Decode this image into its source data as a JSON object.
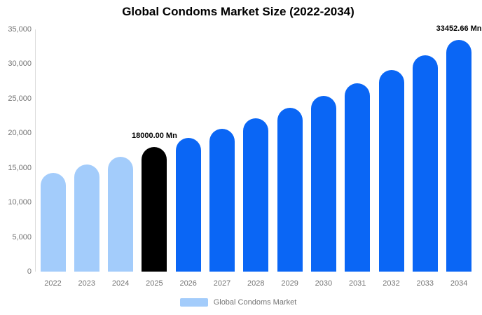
{
  "title": "Global Condoms Market Size (2022-2034)",
  "legend": {
    "label": "Global Condoms Market",
    "swatch_color": "#a3ccfb"
  },
  "colors": {
    "past": "#a3ccfb",
    "current": "#000000",
    "forecast": "#0a66f5",
    "axis_line": "#dcdcdc",
    "tick_text": "#757575"
  },
  "chart_data": {
    "type": "bar",
    "title": "Global Condoms Market Size (2022-2034)",
    "xlabel": "",
    "ylabel": "",
    "unit": "Mn",
    "categories": [
      "2022",
      "2023",
      "2024",
      "2025",
      "2026",
      "2027",
      "2028",
      "2029",
      "2030",
      "2031",
      "2032",
      "2033",
      "2034"
    ],
    "series": [
      {
        "name": "Global Condoms Market",
        "values": [
          14300,
          15500,
          16600,
          18000,
          19283,
          20657,
          22130,
          23707,
          25397,
          27208,
          29147,
          31225,
          33452.66
        ]
      }
    ],
    "point_colors": [
      "#a3ccfb",
      "#a3ccfb",
      "#a3ccfb",
      "#000000",
      "#0a66f5",
      "#0a66f5",
      "#0a66f5",
      "#0a66f5",
      "#0a66f5",
      "#0a66f5",
      "#0a66f5",
      "#0a66f5",
      "#0a66f5"
    ],
    "ylim": [
      0,
      35000
    ],
    "y_ticks": [
      {
        "value": 0,
        "label": "0"
      },
      {
        "value": 5000,
        "label": "5,000"
      },
      {
        "value": 10000,
        "label": "10,000"
      },
      {
        "value": 15000,
        "label": "15,000"
      },
      {
        "value": 20000,
        "label": "20,000"
      },
      {
        "value": 25000,
        "label": "25,000"
      },
      {
        "value": 30000,
        "label": "30,000"
      },
      {
        "value": 35000,
        "label": "35,000"
      }
    ],
    "annotations": [
      {
        "category_index": 3,
        "text": "18000.00 Mn"
      },
      {
        "category_index": 12,
        "text": "33452.66 Mn"
      }
    ],
    "grid": false,
    "legend_position": "bottom"
  }
}
